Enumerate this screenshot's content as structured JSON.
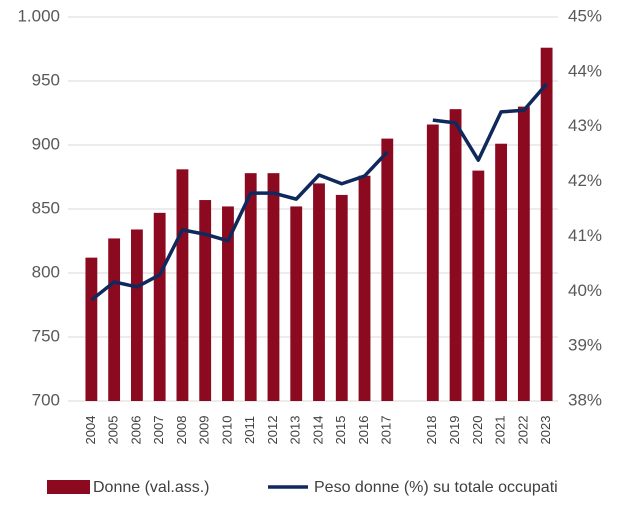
{
  "chart_data": {
    "type": "bar",
    "categories": [
      "2004",
      "2005",
      "2006",
      "2007",
      "2008",
      "2009",
      "2010",
      "2011",
      "2012",
      "2013",
      "2014",
      "2015",
      "2016",
      "2017",
      null,
      "2018",
      "2019",
      "2020",
      "2021",
      "2022",
      "2023"
    ],
    "series": [
      {
        "name": "Donne (val.ass.)",
        "type": "bar",
        "color": "#8c0a20",
        "axis": "y",
        "values": [
          812,
          827,
          834,
          847,
          881,
          857,
          852,
          878,
          878,
          852,
          870,
          861,
          876,
          905,
          null,
          916,
          928,
          880,
          901,
          930,
          976
        ]
      },
      {
        "name": "Peso donne (%) su totale occupati",
        "type": "line",
        "color": "#10295c",
        "axis": "y2",
        "values": [
          39.84,
          40.17,
          40.08,
          40.3,
          41.12,
          41.04,
          40.92,
          41.79,
          41.79,
          41.68,
          42.12,
          41.96,
          42.1,
          42.54,
          null,
          43.12,
          43.07,
          42.39,
          43.27,
          43.3,
          43.78
        ]
      }
    ],
    "ylim": [
      700,
      1000
    ],
    "yticks": [
      700,
      750,
      800,
      850,
      900,
      950,
      {
        "value": 1000,
        "label": "1.000"
      }
    ],
    "y2lim": [
      38,
      45
    ],
    "y2ticks": [
      {
        "value": 38,
        "label": "38%"
      },
      {
        "value": 39,
        "label": "39%"
      },
      {
        "value": 40,
        "label": "40%"
      },
      {
        "value": 41,
        "label": "41%"
      },
      {
        "value": 42,
        "label": "42%"
      },
      {
        "value": 43,
        "label": "43%"
      },
      {
        "value": 44,
        "label": "44%"
      },
      {
        "value": 45,
        "label": "45%"
      }
    ],
    "grid": true,
    "legend": "bottom"
  }
}
